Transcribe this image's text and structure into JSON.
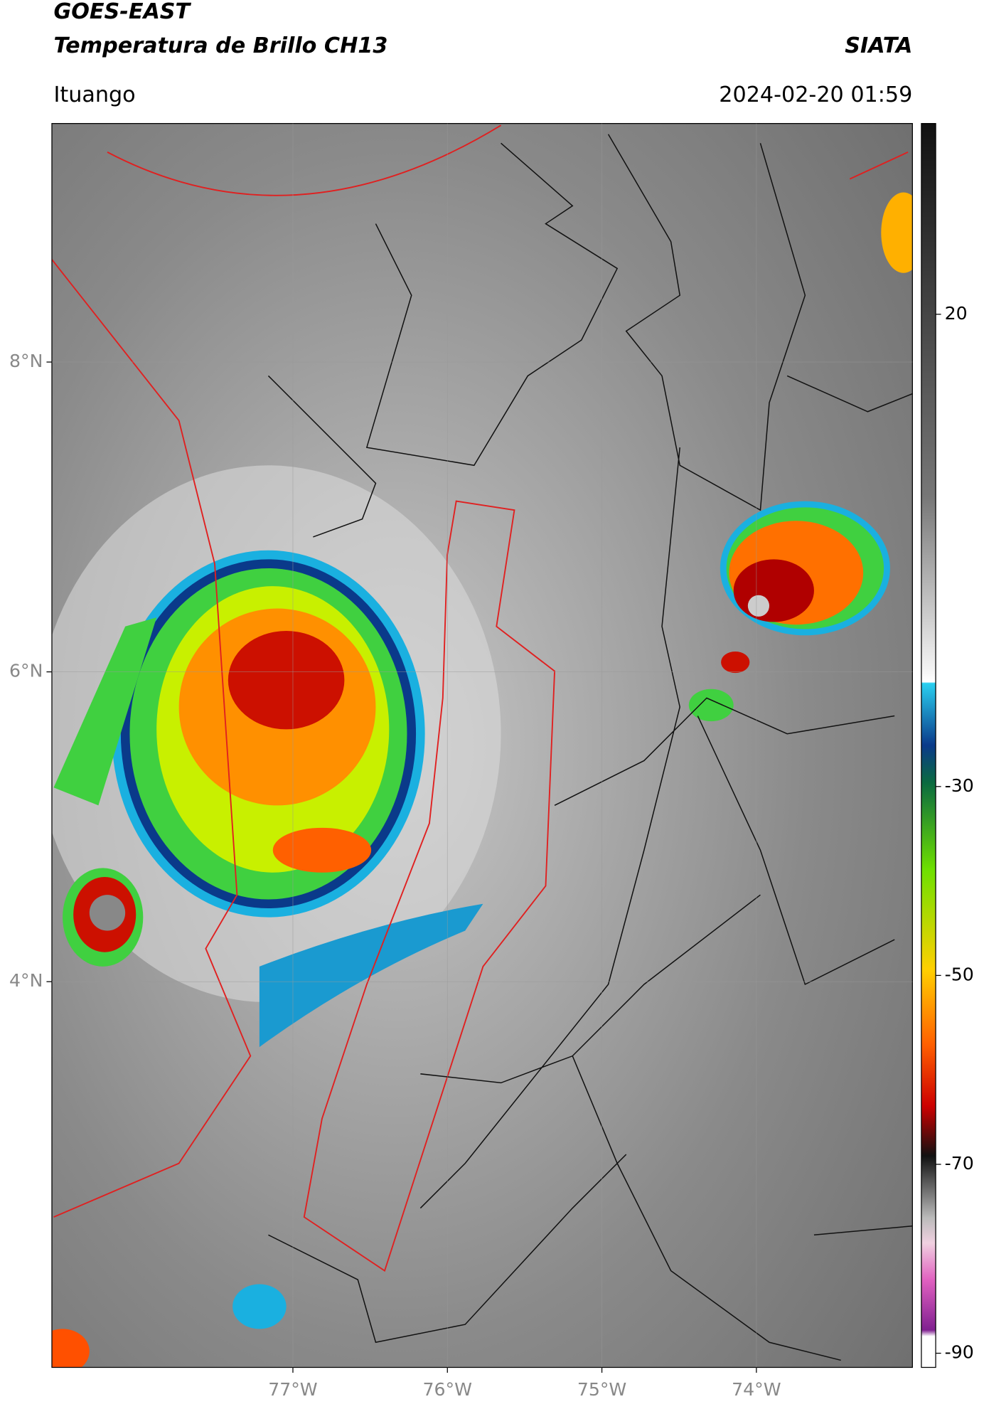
{
  "header": {
    "title": "GOES-EAST",
    "subtitle": "Temperatura de Brillo CH13",
    "source": "SIATA",
    "location": "Ituango",
    "datetime": "2024-02-20 01:59"
  },
  "map": {
    "xlim": [
      -78.56,
      -72.99
    ],
    "ylim": [
      1.51,
      9.54
    ],
    "xticks": [
      {
        "value": -77,
        "label": "77°W"
      },
      {
        "value": -76,
        "label": "76°W"
      },
      {
        "value": -75,
        "label": "75°W"
      },
      {
        "value": -74,
        "label": "74°W"
      }
    ],
    "yticks": [
      {
        "value": 8,
        "label": "8°N"
      },
      {
        "value": 6,
        "label": "6°N"
      },
      {
        "value": 4,
        "label": "4°N"
      }
    ],
    "grid": true
  },
  "colorbar": {
    "lim": [
      -91.5,
      40.2
    ],
    "ticks": [
      20,
      -30,
      -50,
      -70,
      -90
    ]
  }
}
